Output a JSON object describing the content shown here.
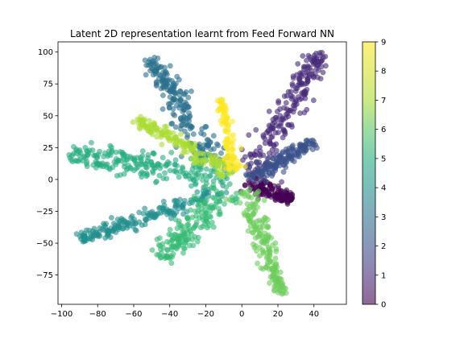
{
  "chart_data": {
    "type": "scatter",
    "title": "Latent 2D representation learnt from Feed Forward NN",
    "xlabel": "",
    "ylabel": "",
    "xlim": [
      -102,
      58
    ],
    "ylim": [
      -98,
      108
    ],
    "xticks": [
      -100,
      -80,
      -60,
      -40,
      -20,
      0,
      20,
      40
    ],
    "yticks": [
      -75,
      -50,
      -25,
      0,
      25,
      50,
      75,
      100
    ],
    "xtick_labels": [
      "−100",
      "−80",
      "−60",
      "−40",
      "−20",
      "0",
      "20",
      "40"
    ],
    "ytick_labels": [
      "−75",
      "−50",
      "−25",
      "0",
      "25",
      "50",
      "75",
      "100"
    ],
    "grid": false,
    "point_alpha": 0.6,
    "colorbar": {
      "label": "",
      "range": [
        0,
        9
      ],
      "ticks": [
        "0",
        "1",
        "2",
        "3",
        "4",
        "5",
        "6",
        "7",
        "8",
        "9"
      ],
      "colormap": "viridis"
    },
    "series": [
      {
        "class": 0,
        "color": "#440154",
        "start": [
          2,
          -3
        ],
        "end": [
          28,
          -15
        ],
        "count": 130,
        "width": 4
      },
      {
        "class": 1,
        "color": "#472c7a",
        "start": [
          4,
          3
        ],
        "end": [
          44,
          100
        ],
        "count": 220,
        "width": 5
      },
      {
        "class": 2,
        "color": "#3b518b",
        "start": [
          5,
          0
        ],
        "end": [
          40,
          30
        ],
        "count": 160,
        "width": 3.5
      },
      {
        "class": 3,
        "color": "#2c718e",
        "start": [
          -14,
          12
        ],
        "end": [
          -51,
          95
        ],
        "count": 220,
        "width": 5
      },
      {
        "class": 4,
        "color": "#21908d",
        "start": [
          -8,
          -8
        ],
        "end": [
          -90,
          -47
        ],
        "count": 200,
        "width": 4
      },
      {
        "class": 5,
        "color": "#27ad81",
        "start": [
          -5,
          3
        ],
        "end": [
          -96,
          20
        ],
        "count": 230,
        "width": 7
      },
      {
        "class": 6,
        "color": "#36bb75",
        "start": [
          -8,
          -6
        ],
        "end": [
          -45,
          -62
        ],
        "count": 180,
        "width": 6
      },
      {
        "class": 7,
        "color": "#6ccd5a",
        "start": [
          2,
          -8
        ],
        "end": [
          22,
          -90
        ],
        "count": 180,
        "width": 3.5
      },
      {
        "class": 8,
        "color": "#aadc32",
        "start": [
          -6,
          4
        ],
        "end": [
          -58,
          48
        ],
        "count": 160,
        "width": 3.5
      },
      {
        "class": 9,
        "color": "#fde725",
        "start": [
          -4,
          6
        ],
        "end": [
          -11,
          63
        ],
        "count": 110,
        "width": 2.5
      }
    ]
  }
}
